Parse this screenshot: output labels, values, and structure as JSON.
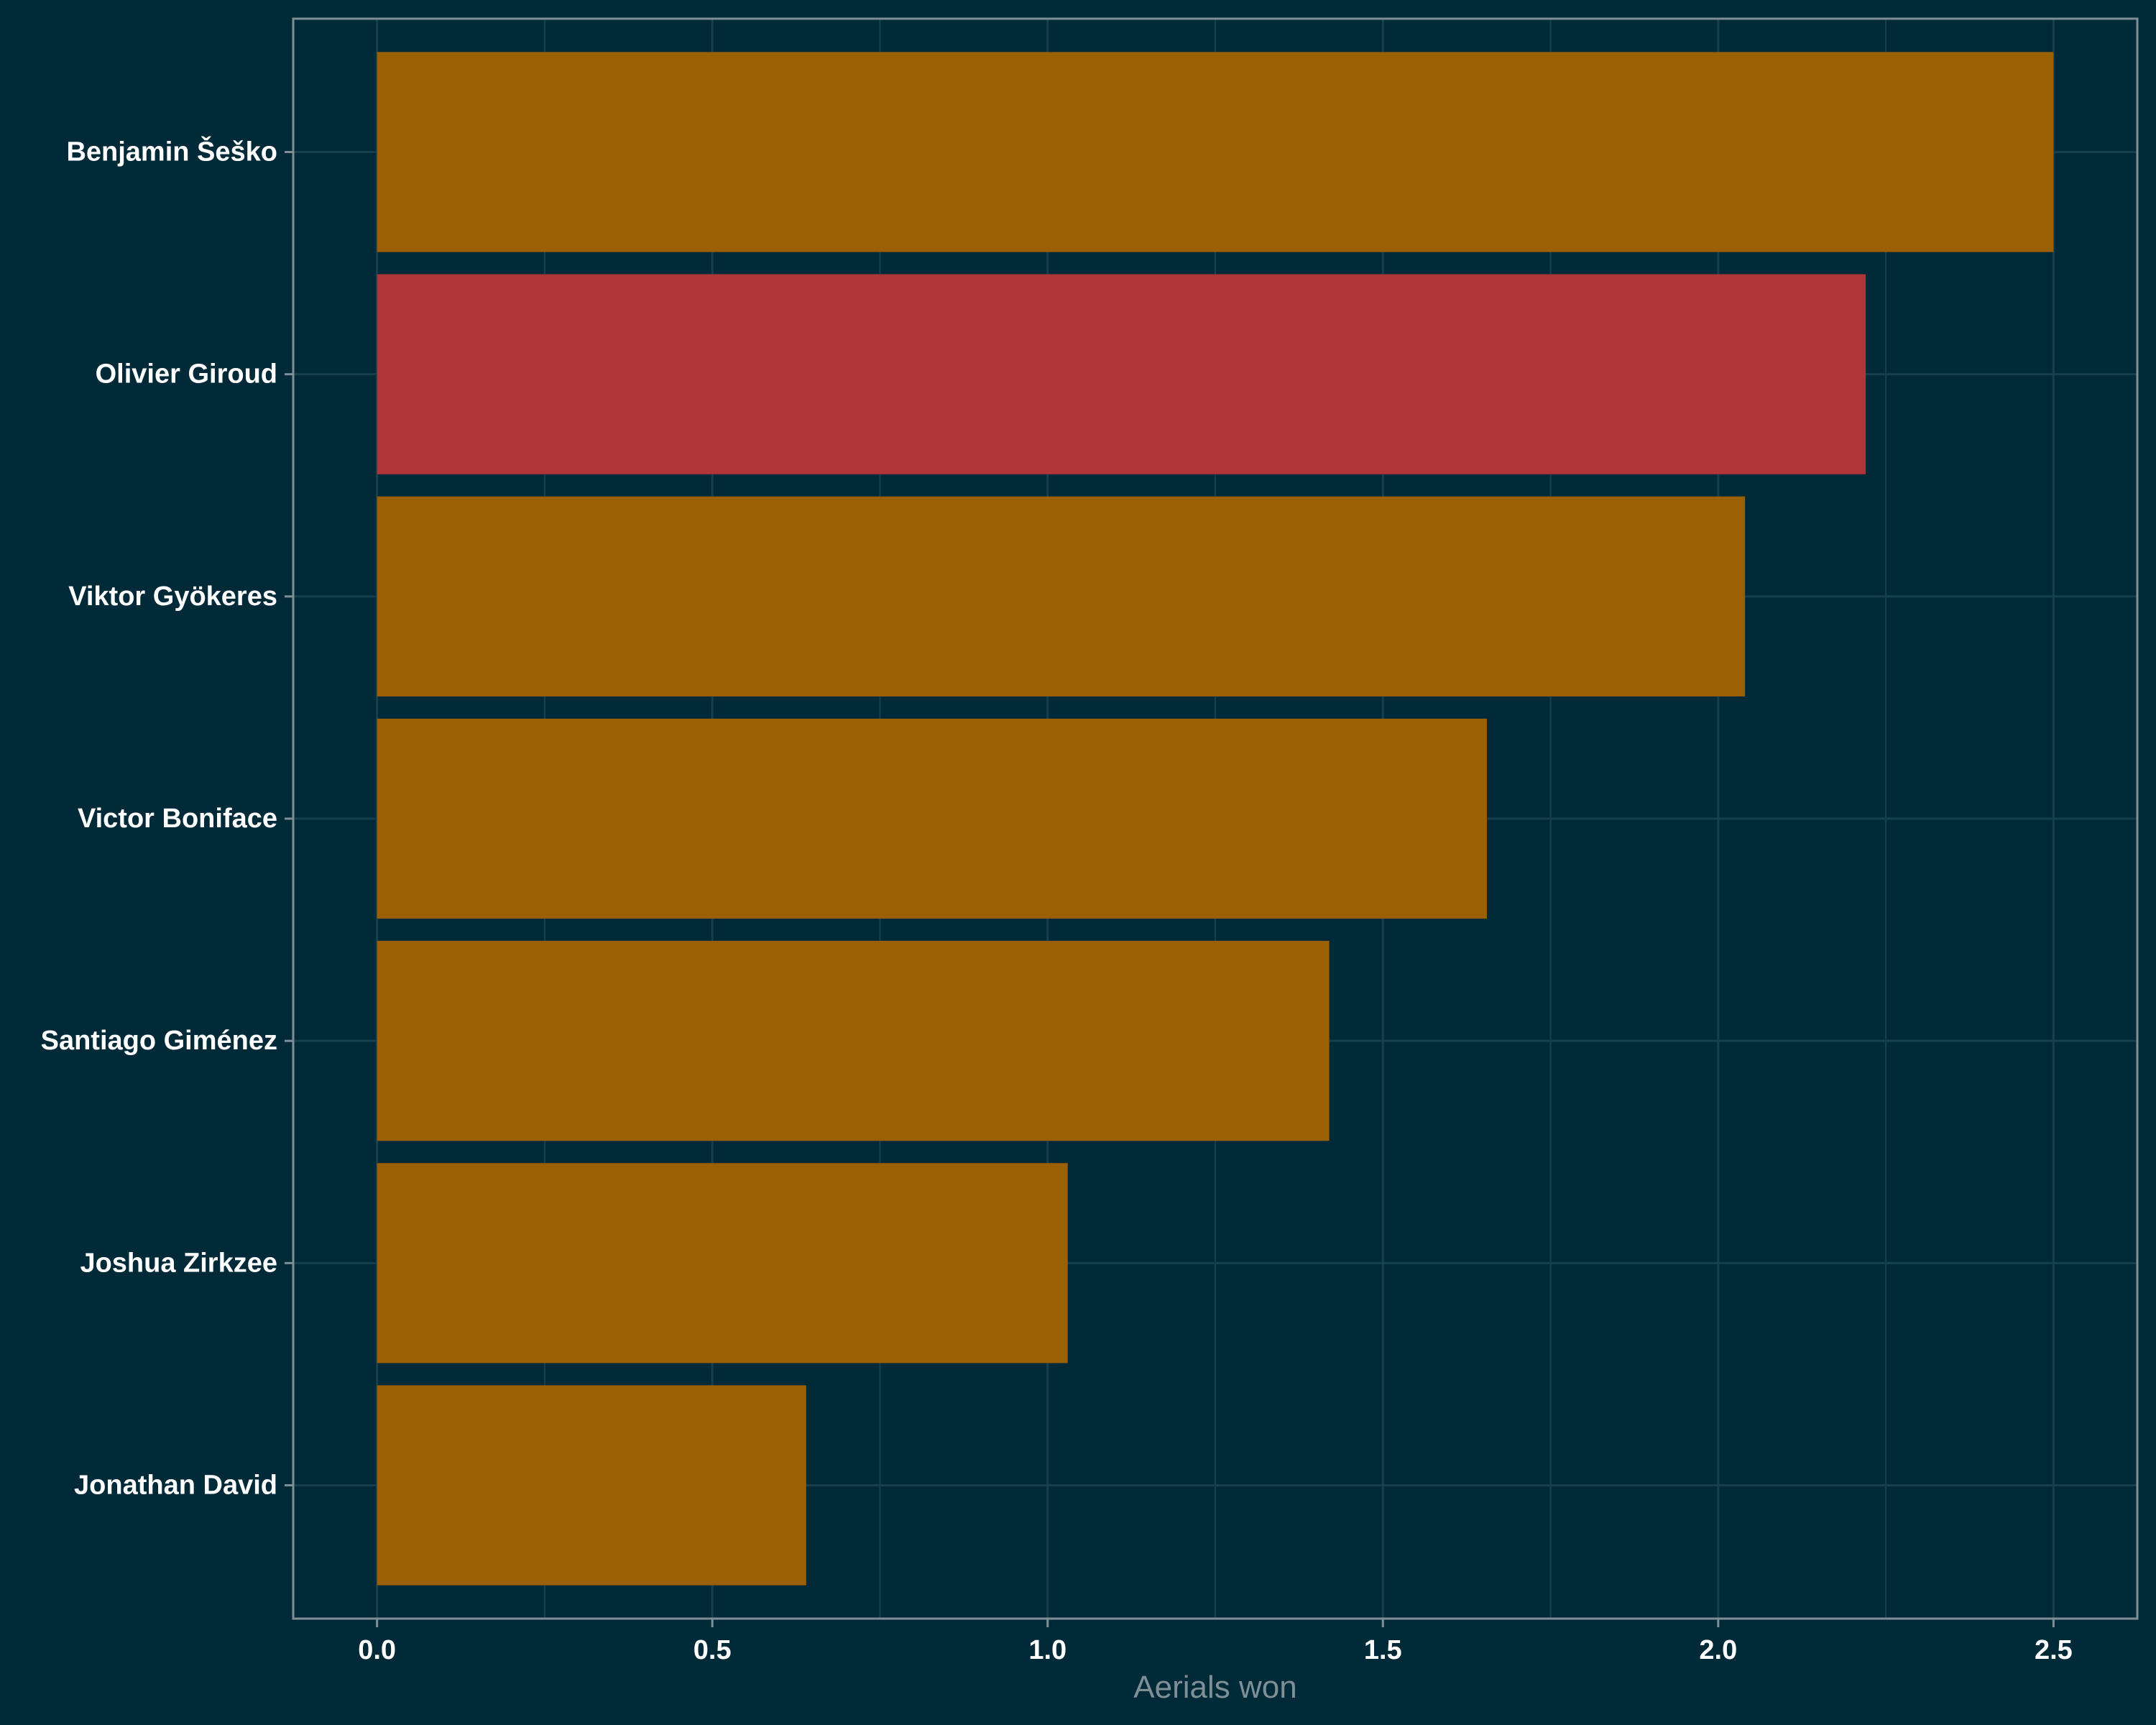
{
  "chart_data": {
    "type": "bar",
    "orientation": "horizontal",
    "categories": [
      "Benjamin Šeško",
      "Olivier Giroud",
      "Viktor Gyökeres",
      "Victor Boniface",
      "Santiago Giménez",
      "Joshua Zirkzee",
      "Jonathan David"
    ],
    "values": [
      2.5,
      2.22,
      2.04,
      1.655,
      1.42,
      1.03,
      0.64
    ],
    "highlight_category": "Olivier Giroud",
    "title": "",
    "xlabel": "Aerials won",
    "ylabel": "",
    "xlim": [
      -0.125,
      2.625
    ],
    "xticks": [
      0.0,
      0.5,
      1.0,
      1.5,
      2.0,
      2.5
    ],
    "xtick_labels": [
      "0.0",
      "0.5",
      "1.0",
      "1.5",
      "2.0",
      "2.5"
    ],
    "grid": true,
    "legend": "none"
  },
  "colors": {
    "background": "#012a39",
    "bar": "#9b6004",
    "highlight_bar": "#b03538",
    "grid": "#16404e",
    "panel_border": "#7f8f96",
    "tick_label": "#ffffff",
    "axis_title": "#7f8f96"
  }
}
